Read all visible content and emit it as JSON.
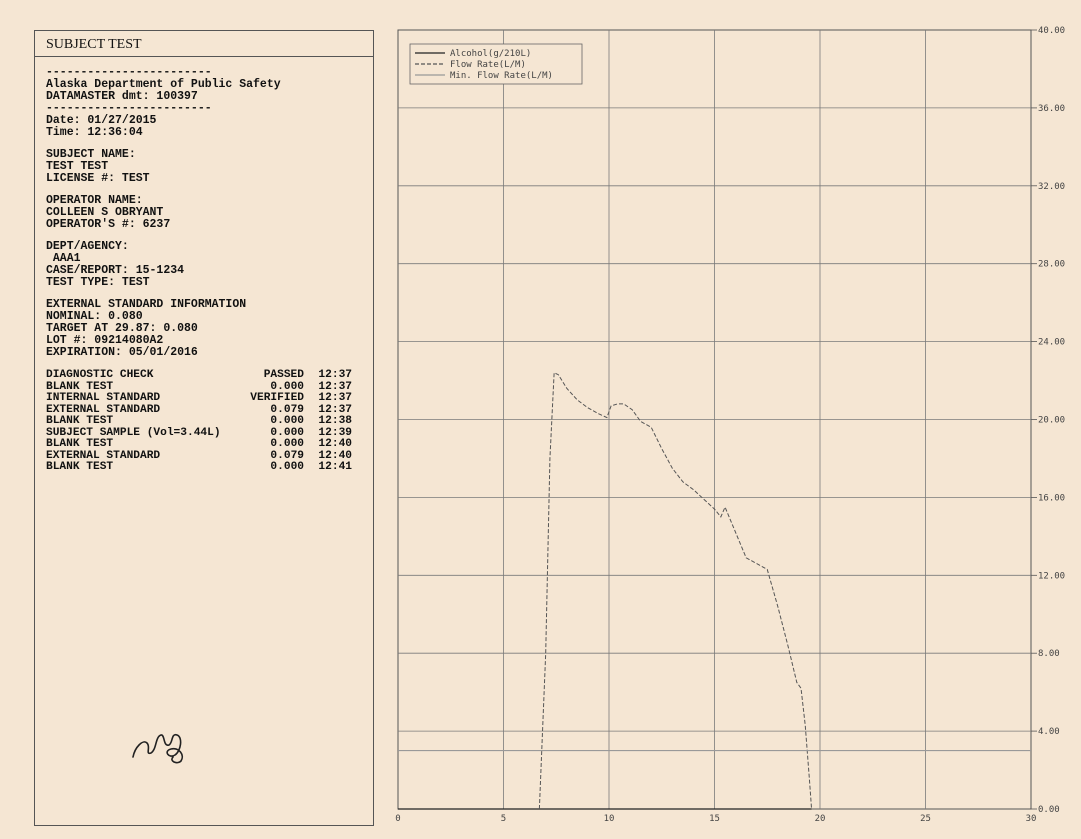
{
  "report": {
    "title": "SUBJECT TEST",
    "rule": "------------------------",
    "agency": "Alaska Department of Public Safety",
    "instrument": "DATAMASTER dmt: 100397",
    "date": "Date: 01/27/2015",
    "time": "Time: 12:36:04",
    "subject_label": "SUBJECT NAME:",
    "subject_name": "TEST TEST",
    "license": "LICENSE #: TEST",
    "operator_label": "OPERATOR NAME:",
    "operator_name": "COLLEEN S OBRYANT",
    "operator_number": "OPERATOR'S #: 6237",
    "dept_label": "DEPT/AGENCY:",
    "dept_value": " AAA1",
    "case": "CASE/REPORT: 15-1234",
    "test_type": "TEST TYPE: TEST",
    "ext_header": "EXTERNAL STANDARD INFORMATION",
    "nominal": "NOMINAL: 0.080",
    "target": "TARGET AT 29.87: 0.080",
    "lot": "LOT #: 09214080A2",
    "expiration": "EXPIRATION: 05/01/2016",
    "results": [
      {
        "name": "DIAGNOSTIC CHECK",
        "value": "PASSED",
        "time": "12:37"
      },
      {
        "name": "BLANK TEST",
        "value": "0.000",
        "time": "12:37"
      },
      {
        "name": "INTERNAL STANDARD",
        "value": "VERIFIED",
        "time": "12:37"
      },
      {
        "name": "EXTERNAL STANDARD",
        "value": "0.079",
        "time": "12:37"
      },
      {
        "name": "BLANK TEST",
        "value": "0.000",
        "time": "12:38"
      },
      {
        "name": "SUBJECT SAMPLE (Vol=3.44L)",
        "value": "0.000",
        "time": "12:39"
      },
      {
        "name": "BLANK TEST",
        "value": "0.000",
        "time": "12:40"
      },
      {
        "name": "EXTERNAL STANDARD",
        "value": "0.079",
        "time": "12:40"
      },
      {
        "name": "BLANK TEST",
        "value": "0.000",
        "time": "12:41"
      }
    ]
  },
  "chart_data": {
    "type": "line",
    "xlim": [
      0,
      30
    ],
    "ylim": [
      0,
      40
    ],
    "x_ticks": [
      "0",
      "5",
      "10",
      "15",
      "20",
      "25",
      "30"
    ],
    "y_ticks": [
      "0.00",
      "4.00",
      "8.00",
      "12.00",
      "16.00",
      "20.00",
      "24.00",
      "28.00",
      "32.00",
      "36.00",
      "40.00"
    ],
    "grid": true,
    "legend_position": "top-left",
    "series": [
      {
        "name": "Alcohol(g/210L)",
        "style": "solid",
        "color": "#222222",
        "x": [
          0,
          19.6
        ],
        "y": [
          0,
          0
        ]
      },
      {
        "name": "Flow Rate(L/M)",
        "style": "dashed",
        "color": "#555555",
        "x": [
          6.7,
          7.0,
          7.2,
          7.4,
          7.6,
          8.0,
          8.5,
          9.0,
          9.5,
          9.9,
          10.1,
          10.4,
          10.7,
          11.1,
          11.5,
          12.0,
          12.5,
          13.0,
          13.5,
          14.0,
          14.5,
          15.0,
          15.3,
          15.5,
          16.0,
          16.5,
          17.0,
          17.5,
          18.0,
          18.5,
          18.9,
          19.1,
          19.3,
          19.5,
          19.6
        ],
        "y": [
          0,
          8.0,
          18.0,
          22.4,
          22.3,
          21.6,
          21.0,
          20.6,
          20.3,
          20.1,
          20.7,
          20.8,
          20.8,
          20.5,
          19.9,
          19.6,
          18.5,
          17.5,
          16.8,
          16.4,
          15.9,
          15.4,
          15.0,
          15.5,
          14.2,
          12.9,
          12.6,
          12.3,
          10.4,
          8.3,
          6.5,
          6.2,
          4.3,
          1.5,
          0
        ]
      },
      {
        "name": "Min. Flow Rate(L/M)",
        "style": "solid",
        "color": "#999999",
        "x": [
          0,
          30
        ],
        "y": [
          3.0,
          3.0
        ]
      }
    ]
  }
}
